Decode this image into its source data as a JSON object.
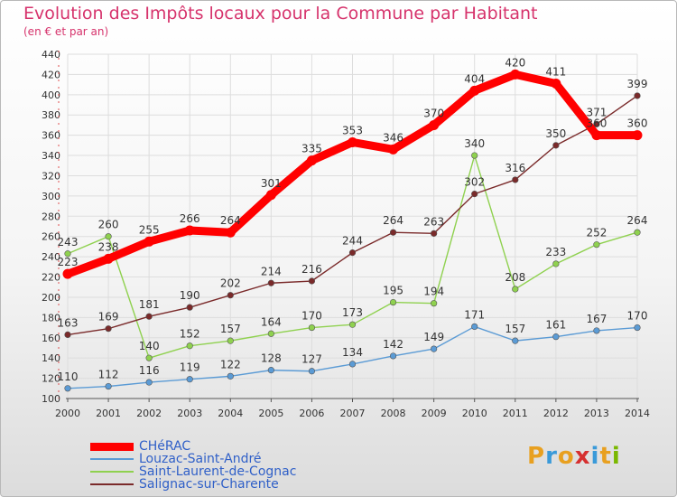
{
  "title": "Evolution des Impôts locaux pour la Commune par Habitant",
  "subtitle": "(en € et par an)",
  "logo": {
    "letters": [
      "P",
      "r",
      "o",
      "x",
      "i",
      "t",
      "i"
    ],
    "colors": [
      "#e8a020",
      "#3a9ad9",
      "#e8a020",
      "#d63030",
      "#3a9ad9",
      "#e8a020",
      "#7ab800"
    ]
  },
  "chart_data": {
    "type": "line",
    "title": "Evolution des Impôts locaux pour la Commune par Habitant",
    "subtitle": "(en € et par an)",
    "xlabel": "",
    "ylabel": "",
    "x": [
      "2000",
      "2001",
      "2002",
      "2003",
      "2004",
      "2005",
      "2006",
      "2007",
      "2008",
      "2009",
      "2010",
      "2011",
      "2012",
      "2013",
      "2014"
    ],
    "ylim": [
      100,
      440
    ],
    "yticks": [
      100,
      120,
      140,
      160,
      180,
      200,
      220,
      240,
      260,
      280,
      300,
      320,
      340,
      360,
      380,
      400,
      420,
      440
    ],
    "grid": true,
    "series": [
      {
        "name": "CHéRAC",
        "color": "#ff0000",
        "values": [
          223,
          238,
          255,
          266,
          264,
          301,
          335,
          353,
          346,
          370,
          404,
          420,
          411,
          360,
          360
        ]
      },
      {
        "name": "Louzac-Saint-André",
        "color": "#5b9bd5",
        "values": [
          110,
          112,
          116,
          119,
          122,
          128,
          127,
          134,
          142,
          149,
          171,
          157,
          161,
          167,
          170
        ]
      },
      {
        "name": "Saint-Laurent-de-Cognac",
        "color": "#8fd14f",
        "values": [
          243,
          260,
          140,
          152,
          157,
          164,
          170,
          173,
          195,
          194,
          340,
          208,
          233,
          252,
          264
        ]
      },
      {
        "name": "Salignac-sur-Charente",
        "color": "#7a2a2a",
        "values": [
          163,
          169,
          181,
          190,
          202,
          214,
          216,
          244,
          264,
          263,
          302,
          316,
          350,
          371,
          399
        ]
      }
    ]
  }
}
